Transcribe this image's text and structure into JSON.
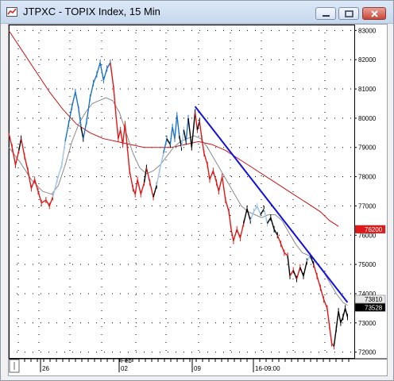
{
  "window": {
    "title": "JTPXC - TOPIX Index, 15 Min",
    "app_icon": "chart-app-icon",
    "buttons": {
      "minimize": "minimize-icon",
      "maximize": "maximize-icon",
      "close": "close-icon"
    }
  },
  "colors": {
    "up": "#1e73c9",
    "up_light": "#9dc3ea",
    "down": "#e01818",
    "neutral": "#000000",
    "ma_fast": "#8a8a8a",
    "ma_slow": "#c81414",
    "trendline": "#1010e0",
    "grid": "#000000"
  },
  "chart_data": {
    "type": "line",
    "ylim": [
      71800,
      83200
    ],
    "y_ticks": [
      "72000",
      "73000",
      "74000",
      "75000",
      "76000",
      "77000",
      "78000",
      "79000",
      "80000",
      "81000",
      "82000",
      "83000"
    ],
    "x_ticks": [
      "26",
      "02",
      "09",
      "16-09:00"
    ],
    "x_month_label": "Feb",
    "price_path": [
      [
        0,
        79500,
        "down"
      ],
      [
        3,
        79000,
        "down"
      ],
      [
        6,
        78400,
        "down"
      ],
      [
        9,
        78900,
        "down"
      ],
      [
        11,
        79300,
        "neutral"
      ],
      [
        14,
        78700,
        "down"
      ],
      [
        17,
        78200,
        "down"
      ],
      [
        20,
        77600,
        "down"
      ],
      [
        23,
        77900,
        "down"
      ],
      [
        26,
        77500,
        "down"
      ],
      [
        29,
        77100,
        "down"
      ],
      [
        33,
        77200,
        "down"
      ],
      [
        36,
        77000,
        "down"
      ],
      [
        39,
        77300,
        "down"
      ],
      [
        43,
        77900,
        "up_light"
      ],
      [
        47,
        78400,
        "up_light"
      ],
      [
        50,
        79200,
        "up_light"
      ],
      [
        53,
        79800,
        "up"
      ],
      [
        56,
        80400,
        "up"
      ],
      [
        59,
        80900,
        "up"
      ],
      [
        62,
        80300,
        "up"
      ],
      [
        64,
        79700,
        "up"
      ],
      [
        66,
        79300,
        "neutral"
      ],
      [
        69,
        79900,
        "up"
      ],
      [
        72,
        80700,
        "up"
      ],
      [
        75,
        81200,
        "up"
      ],
      [
        78,
        81500,
        "up"
      ],
      [
        81,
        81900,
        "up"
      ],
      [
        84,
        81300,
        "up"
      ],
      [
        87,
        81700,
        "up"
      ],
      [
        90,
        81900,
        "up"
      ],
      [
        93,
        81000,
        "down"
      ],
      [
        95,
        80100,
        "down"
      ],
      [
        97,
        79300,
        "down"
      ],
      [
        99,
        79600,
        "down"
      ],
      [
        101,
        79100,
        "down"
      ],
      [
        103,
        79800,
        "down"
      ],
      [
        105,
        79000,
        "down"
      ],
      [
        107,
        78200,
        "down"
      ],
      [
        110,
        77600,
        "down"
      ],
      [
        112,
        77400,
        "down"
      ],
      [
        114,
        77900,
        "down"
      ],
      [
        117,
        77400,
        "down"
      ],
      [
        120,
        77800,
        "down"
      ],
      [
        122,
        78300,
        "neutral"
      ],
      [
        125,
        77800,
        "down"
      ],
      [
        128,
        77300,
        "down"
      ],
      [
        131,
        77700,
        "neutral"
      ],
      [
        134,
        78300,
        "up_light"
      ],
      [
        137,
        78800,
        "up_light"
      ],
      [
        140,
        79300,
        "up"
      ],
      [
        143,
        79100,
        "neutral"
      ],
      [
        145,
        79700,
        "up"
      ],
      [
        147,
        79300,
        "up"
      ],
      [
        149,
        80100,
        "up"
      ],
      [
        151,
        79400,
        "up"
      ],
      [
        153,
        79000,
        "neutral"
      ],
      [
        155,
        79600,
        "up_light"
      ],
      [
        157,
        79200,
        "neutral"
      ],
      [
        159,
        80000,
        "up"
      ],
      [
        162,
        79000,
        "neutral"
      ],
      [
        165,
        80200,
        "neutral"
      ],
      [
        167,
        79600,
        "down"
      ],
      [
        169,
        79900,
        "neutral"
      ],
      [
        171,
        79300,
        "down"
      ],
      [
        173,
        78800,
        "down"
      ],
      [
        176,
        78400,
        "down"
      ],
      [
        178,
        77900,
        "down"
      ],
      [
        181,
        78200,
        "down"
      ],
      [
        184,
        77800,
        "down"
      ],
      [
        186,
        77500,
        "down"
      ],
      [
        189,
        78000,
        "down"
      ],
      [
        192,
        77200,
        "down"
      ],
      [
        195,
        76800,
        "down"
      ],
      [
        197,
        76200,
        "down"
      ],
      [
        199,
        75800,
        "down"
      ],
      [
        202,
        76200,
        "down"
      ],
      [
        205,
        75900,
        "down"
      ],
      [
        208,
        76400,
        "down"
      ],
      [
        211,
        76900,
        "neutral"
      ],
      [
        214,
        76500,
        "neutral"
      ],
      [
        217,
        76800,
        "up_light"
      ],
      [
        220,
        77000,
        "up_light"
      ],
      [
        223,
        76700,
        "up_light"
      ],
      [
        226,
        76900,
        "neutral"
      ],
      [
        229,
        76400,
        "up_light"
      ],
      [
        232,
        76600,
        "neutral"
      ],
      [
        235,
        76200,
        "neutral"
      ],
      [
        238,
        76000,
        "neutral"
      ],
      [
        241,
        75700,
        "down"
      ],
      [
        244,
        75400,
        "down"
      ],
      [
        247,
        75300,
        "down"
      ],
      [
        249,
        74600,
        "neutral"
      ],
      [
        252,
        74800,
        "down"
      ],
      [
        255,
        74500,
        "neutral"
      ],
      [
        258,
        74900,
        "down"
      ],
      [
        261,
        74600,
        "neutral"
      ],
      [
        264,
        75100,
        "neutral"
      ],
      [
        267,
        75300,
        "up_light"
      ],
      [
        270,
        75000,
        "neutral"
      ],
      [
        273,
        74600,
        "down"
      ],
      [
        276,
        74200,
        "down"
      ],
      [
        279,
        73800,
        "down"
      ],
      [
        282,
        73500,
        "down"
      ],
      [
        284,
        72900,
        "down"
      ],
      [
        286,
        72300,
        "down"
      ],
      [
        288,
        72200,
        "down"
      ],
      [
        290,
        72800,
        "neutral"
      ],
      [
        292,
        73400,
        "neutral"
      ],
      [
        294,
        73000,
        "neutral"
      ],
      [
        296,
        73200,
        "neutral"
      ],
      [
        298,
        73500,
        "neutral"
      ],
      [
        300,
        73200,
        "neutral"
      ]
    ],
    "ma_fast": [
      [
        0,
        79000
      ],
      [
        10,
        78500
      ],
      [
        20,
        77900
      ],
      [
        30,
        77500
      ],
      [
        38,
        77400
      ],
      [
        44,
        77700
      ],
      [
        50,
        78400
      ],
      [
        56,
        79200
      ],
      [
        62,
        79800
      ],
      [
        68,
        80200
      ],
      [
        74,
        80500
      ],
      [
        80,
        80600
      ],
      [
        86,
        80700
      ],
      [
        92,
        80600
      ],
      [
        98,
        80200
      ],
      [
        104,
        79500
      ],
      [
        110,
        78800
      ],
      [
        116,
        78300
      ],
      [
        122,
        78100
      ],
      [
        128,
        78200
      ],
      [
        134,
        78400
      ],
      [
        140,
        78700
      ],
      [
        146,
        79000
      ],
      [
        152,
        79200
      ],
      [
        158,
        79300
      ],
      [
        164,
        79400
      ],
      [
        170,
        79300
      ],
      [
        176,
        79000
      ],
      [
        182,
        78600
      ],
      [
        188,
        78200
      ],
      [
        194,
        77800
      ],
      [
        200,
        77400
      ],
      [
        206,
        77000
      ],
      [
        212,
        76800
      ],
      [
        218,
        76700
      ],
      [
        224,
        76600
      ],
      [
        230,
        76700
      ],
      [
        236,
        76700
      ],
      [
        242,
        76500
      ],
      [
        248,
        76100
      ],
      [
        254,
        75700
      ],
      [
        260,
        75400
      ],
      [
        266,
        75300
      ],
      [
        272,
        75100
      ],
      [
        278,
        74800
      ],
      [
        284,
        74400
      ],
      [
        290,
        74000
      ],
      [
        296,
        73700
      ],
      [
        300,
        73600
      ]
    ],
    "ma_slow": [
      [
        0,
        83000
      ],
      [
        12,
        82300
      ],
      [
        24,
        81600
      ],
      [
        36,
        80900
      ],
      [
        48,
        80300
      ],
      [
        60,
        79800
      ],
      [
        72,
        79500
      ],
      [
        84,
        79300
      ],
      [
        96,
        79200
      ],
      [
        108,
        79100
      ],
      [
        120,
        79000
      ],
      [
        132,
        79000
      ],
      [
        144,
        79000
      ],
      [
        156,
        79100
      ],
      [
        168,
        79200
      ],
      [
        180,
        79100
      ],
      [
        192,
        78900
      ],
      [
        204,
        78600
      ],
      [
        216,
        78300
      ],
      [
        228,
        78000
      ],
      [
        240,
        77700
      ],
      [
        252,
        77400
      ],
      [
        264,
        77100
      ],
      [
        276,
        76800
      ],
      [
        284,
        76500
      ],
      [
        292,
        76300
      ]
    ],
    "trendline": {
      "from": [
        165,
        80400
      ],
      "to": [
        300,
        73700
      ]
    },
    "badges": [
      {
        "label": "76200",
        "value": 76200,
        "fill": "#e01818",
        "text_color": "#ffffff"
      },
      {
        "label": "73810",
        "value": 73810,
        "fill": "#e8e8e8",
        "text_color": "#000000"
      },
      {
        "label": "73528",
        "value": 73528,
        "fill": "#000000",
        "text_color": "#ffffff"
      }
    ]
  }
}
